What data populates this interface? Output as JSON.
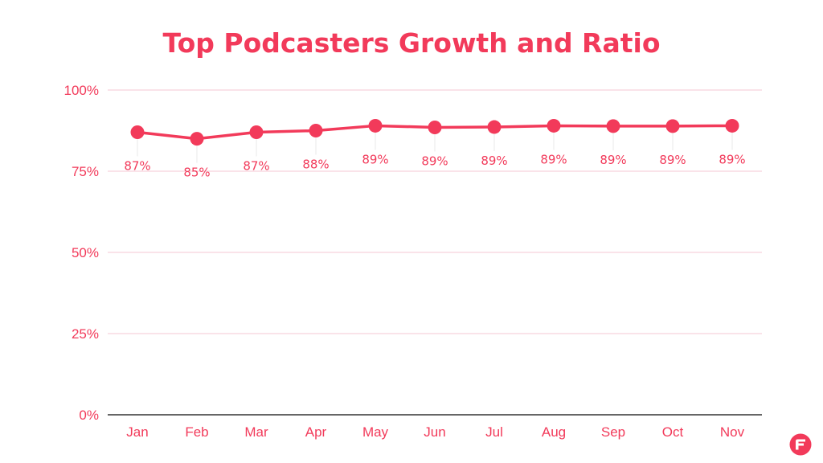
{
  "colors": {
    "accent": "#f23a5a",
    "gridline": "#f6d2dc",
    "axis": "#333333",
    "background": "#ffffff"
  },
  "brand_icon": "brand-logo-icon",
  "chart_data": {
    "type": "line",
    "title": "Top Podcasters Growth and Ratio",
    "xlabel": "",
    "ylabel": "",
    "ylim": [
      0,
      100
    ],
    "yticks": [
      0,
      25,
      50,
      75,
      100
    ],
    "ytick_labels": [
      "0%",
      "25%",
      "50%",
      "75%",
      "100%"
    ],
    "grid": true,
    "categories": [
      "Jan",
      "Feb",
      "Mar",
      "Apr",
      "May",
      "Jun",
      "Jul",
      "Aug",
      "Sep",
      "Oct",
      "Nov"
    ],
    "series": [
      {
        "values": [
          87,
          85,
          87,
          87.5,
          89,
          88.5,
          88.6,
          89,
          88.9,
          88.9,
          89
        ],
        "labels": [
          "87%",
          "85%",
          "87%",
          "88%",
          "89%",
          "89%",
          "89%",
          "89%",
          "89%",
          "89%",
          "89%"
        ]
      }
    ]
  }
}
